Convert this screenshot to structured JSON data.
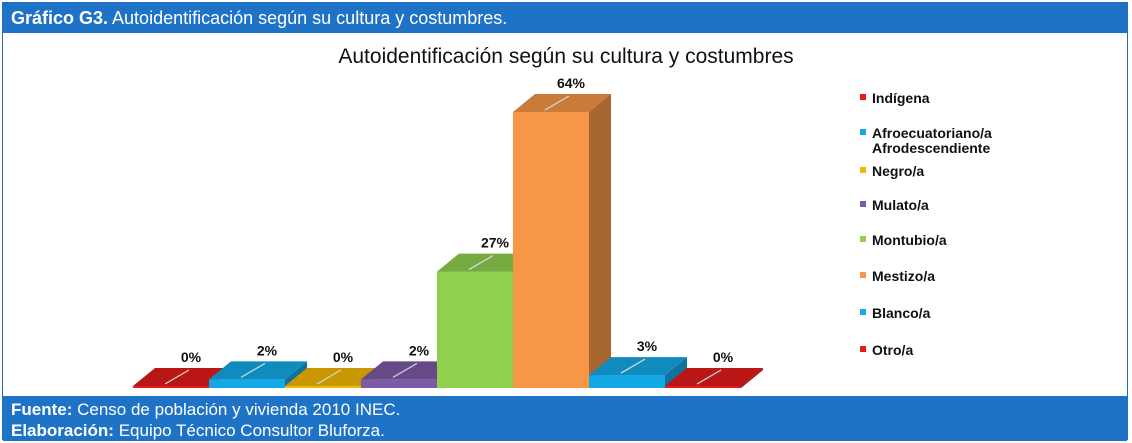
{
  "header": {
    "label_bold": "Gráfico G3.",
    "label_text": " Autoidentificación según su cultura y costumbres."
  },
  "footer": {
    "source_bold": "Fuente:",
    "source_text": " Censo de población y vivienda 2010 INEC.",
    "credit_bold": "Elaboración:",
    "credit_text": " Equipo Técnico  Consultor Bluforza."
  },
  "chart_data": {
    "type": "bar",
    "title": "Autoidentificación según su cultura y costumbres",
    "categories": [
      "Indígena",
      "Afroecuatoriano/a Afrodescendiente",
      "Negro/a",
      "Mulato/a",
      "Montubio/a",
      "Mestizo/a",
      "Blanco/a",
      "Otro/a"
    ],
    "values": [
      0,
      2,
      0,
      2,
      27,
      64,
      3,
      0
    ],
    "value_labels": [
      "0%",
      "2%",
      "0%",
      "2%",
      "27%",
      "64%",
      "3%",
      "0%"
    ],
    "legend": [
      {
        "label": "Indígena",
        "color": "#e31b1b"
      },
      {
        "label": "Afroecuatoriano/a",
        "label2": "Afrodescendiente",
        "color": "#13a9e6"
      },
      {
        "label": "Negro/a",
        "color": "#f5b800"
      },
      {
        "label": "Mulato/a",
        "color": "#7c5aa6"
      },
      {
        "label": "Montubio/a",
        "color": "#8fd14f"
      },
      {
        "label": "Mestizo/a",
        "color": "#f79646"
      },
      {
        "label": "Blanco/a",
        "color": "#13a9e6"
      },
      {
        "label": "Otro/a",
        "color": "#e31b1b"
      }
    ],
    "legend_position": "right",
    "grid": false,
    "ylim": [
      0,
      64
    ]
  }
}
